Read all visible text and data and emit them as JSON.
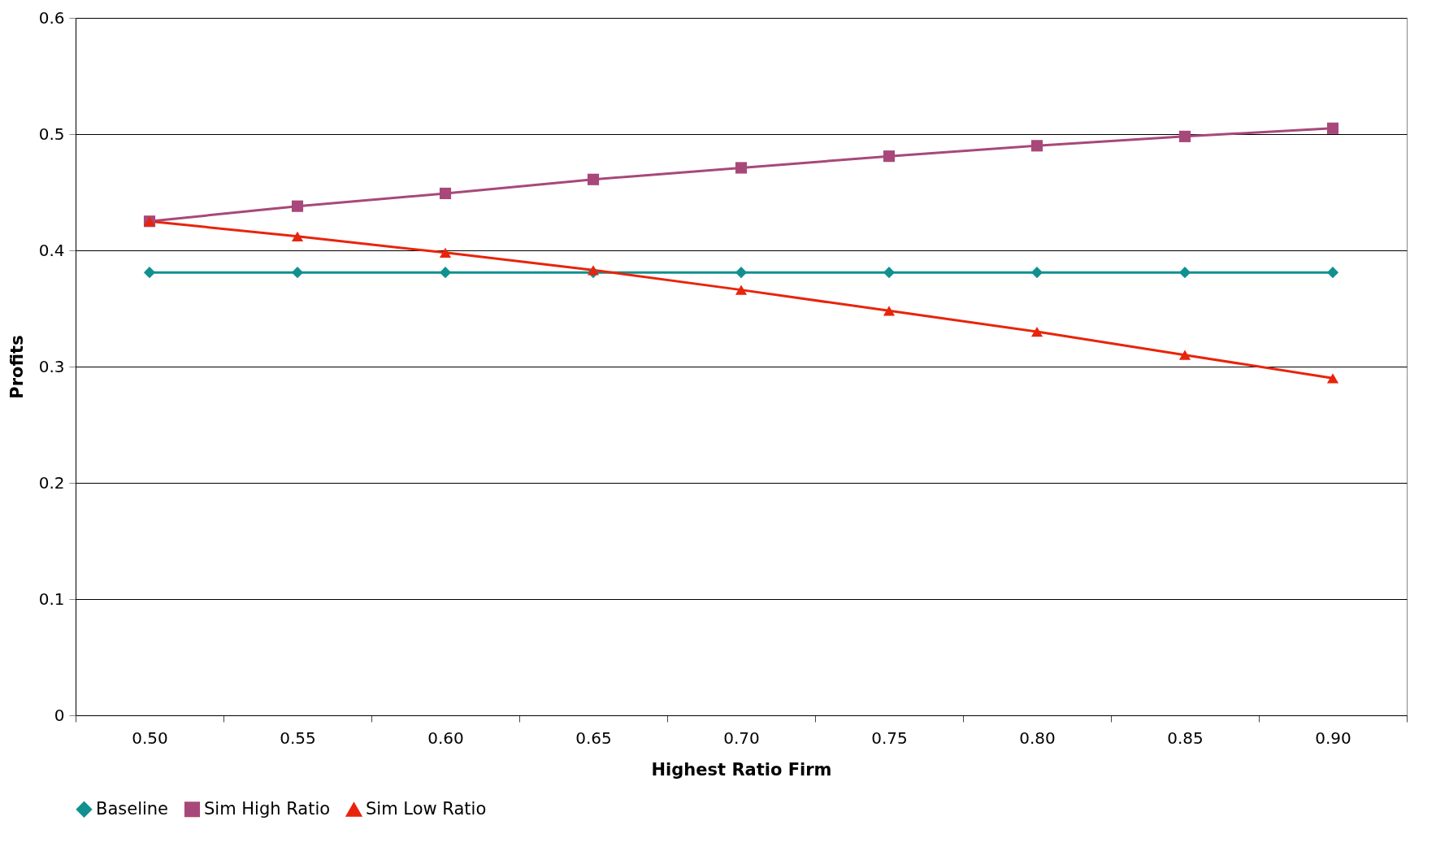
{
  "chart_data": {
    "type": "line",
    "xlabel": "Highest Ratio Firm",
    "ylabel": "Profits",
    "categories": [
      "0.50",
      "0.55",
      "0.60",
      "0.65",
      "0.70",
      "0.75",
      "0.80",
      "0.85",
      "0.90"
    ],
    "series": [
      {
        "name": "Baseline",
        "color": "#119090",
        "marker": "diamond",
        "values": [
          0.381,
          0.381,
          0.381,
          0.381,
          0.381,
          0.381,
          0.381,
          0.381,
          0.381
        ]
      },
      {
        "name": "Sim High Ratio",
        "color": "#a8487a",
        "marker": "square",
        "values": [
          0.425,
          0.438,
          0.449,
          0.461,
          0.471,
          0.481,
          0.49,
          0.498,
          0.505
        ]
      },
      {
        "name": "Sim Low Ratio",
        "color": "#e8240c",
        "marker": "triangle",
        "values": [
          0.425,
          0.412,
          0.398,
          0.383,
          0.366,
          0.348,
          0.33,
          0.31,
          0.29
        ]
      }
    ],
    "ylim": [
      0,
      0.6
    ],
    "yticks": [
      0,
      0.1,
      0.2,
      0.3,
      0.4,
      0.5,
      0.6
    ],
    "grid": "y",
    "legend": "bottom",
    "line_style": "solid"
  }
}
